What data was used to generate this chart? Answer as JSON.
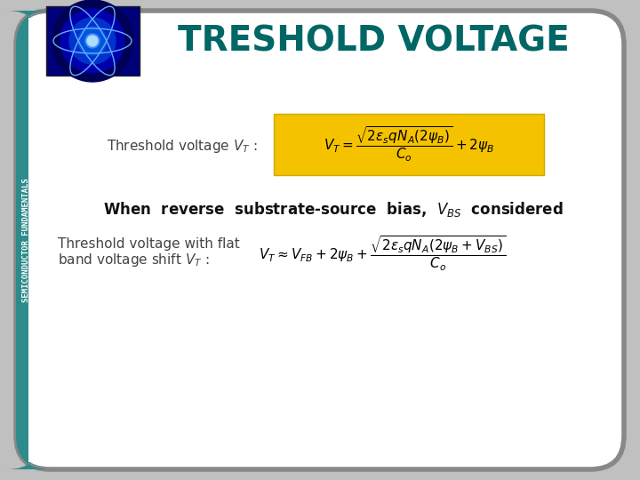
{
  "title": "TRESHOLD VOLTAGE",
  "title_color": "#006666",
  "title_fontsize": 28,
  "bg_color": "#ffffff",
  "border_color": "#888888",
  "sidebar_color": "#2d8b8b",
  "sidebar_text": "SEMICONDUCTOR FUNDAMENTALS",
  "label1": "Threshold voltage $V_T$ :",
  "formula1": "$V_T = \\dfrac{\\sqrt{2\\varepsilon_s q N_A (2\\psi_B)}}{C_o} + 2\\psi_B$",
  "formula1_bg": "#f5c200",
  "middle_text_plain": "When reverse substrate-source bias, V",
  "middle_text_sub": "BS",
  "middle_text_end": " considered",
  "label2_line1": "Threshold voltage with flat",
  "label2_line2": "band voltage shift $V_T$ :",
  "formula2": "$V_T \\approx V_{FB} + 2\\psi_B + \\dfrac{\\sqrt{2\\varepsilon_s q N_A (2\\psi_B + V_{BS})}}{C_o}$",
  "label_fontsize": 11,
  "formula_fontsize": 11,
  "middle_fontsize": 12
}
